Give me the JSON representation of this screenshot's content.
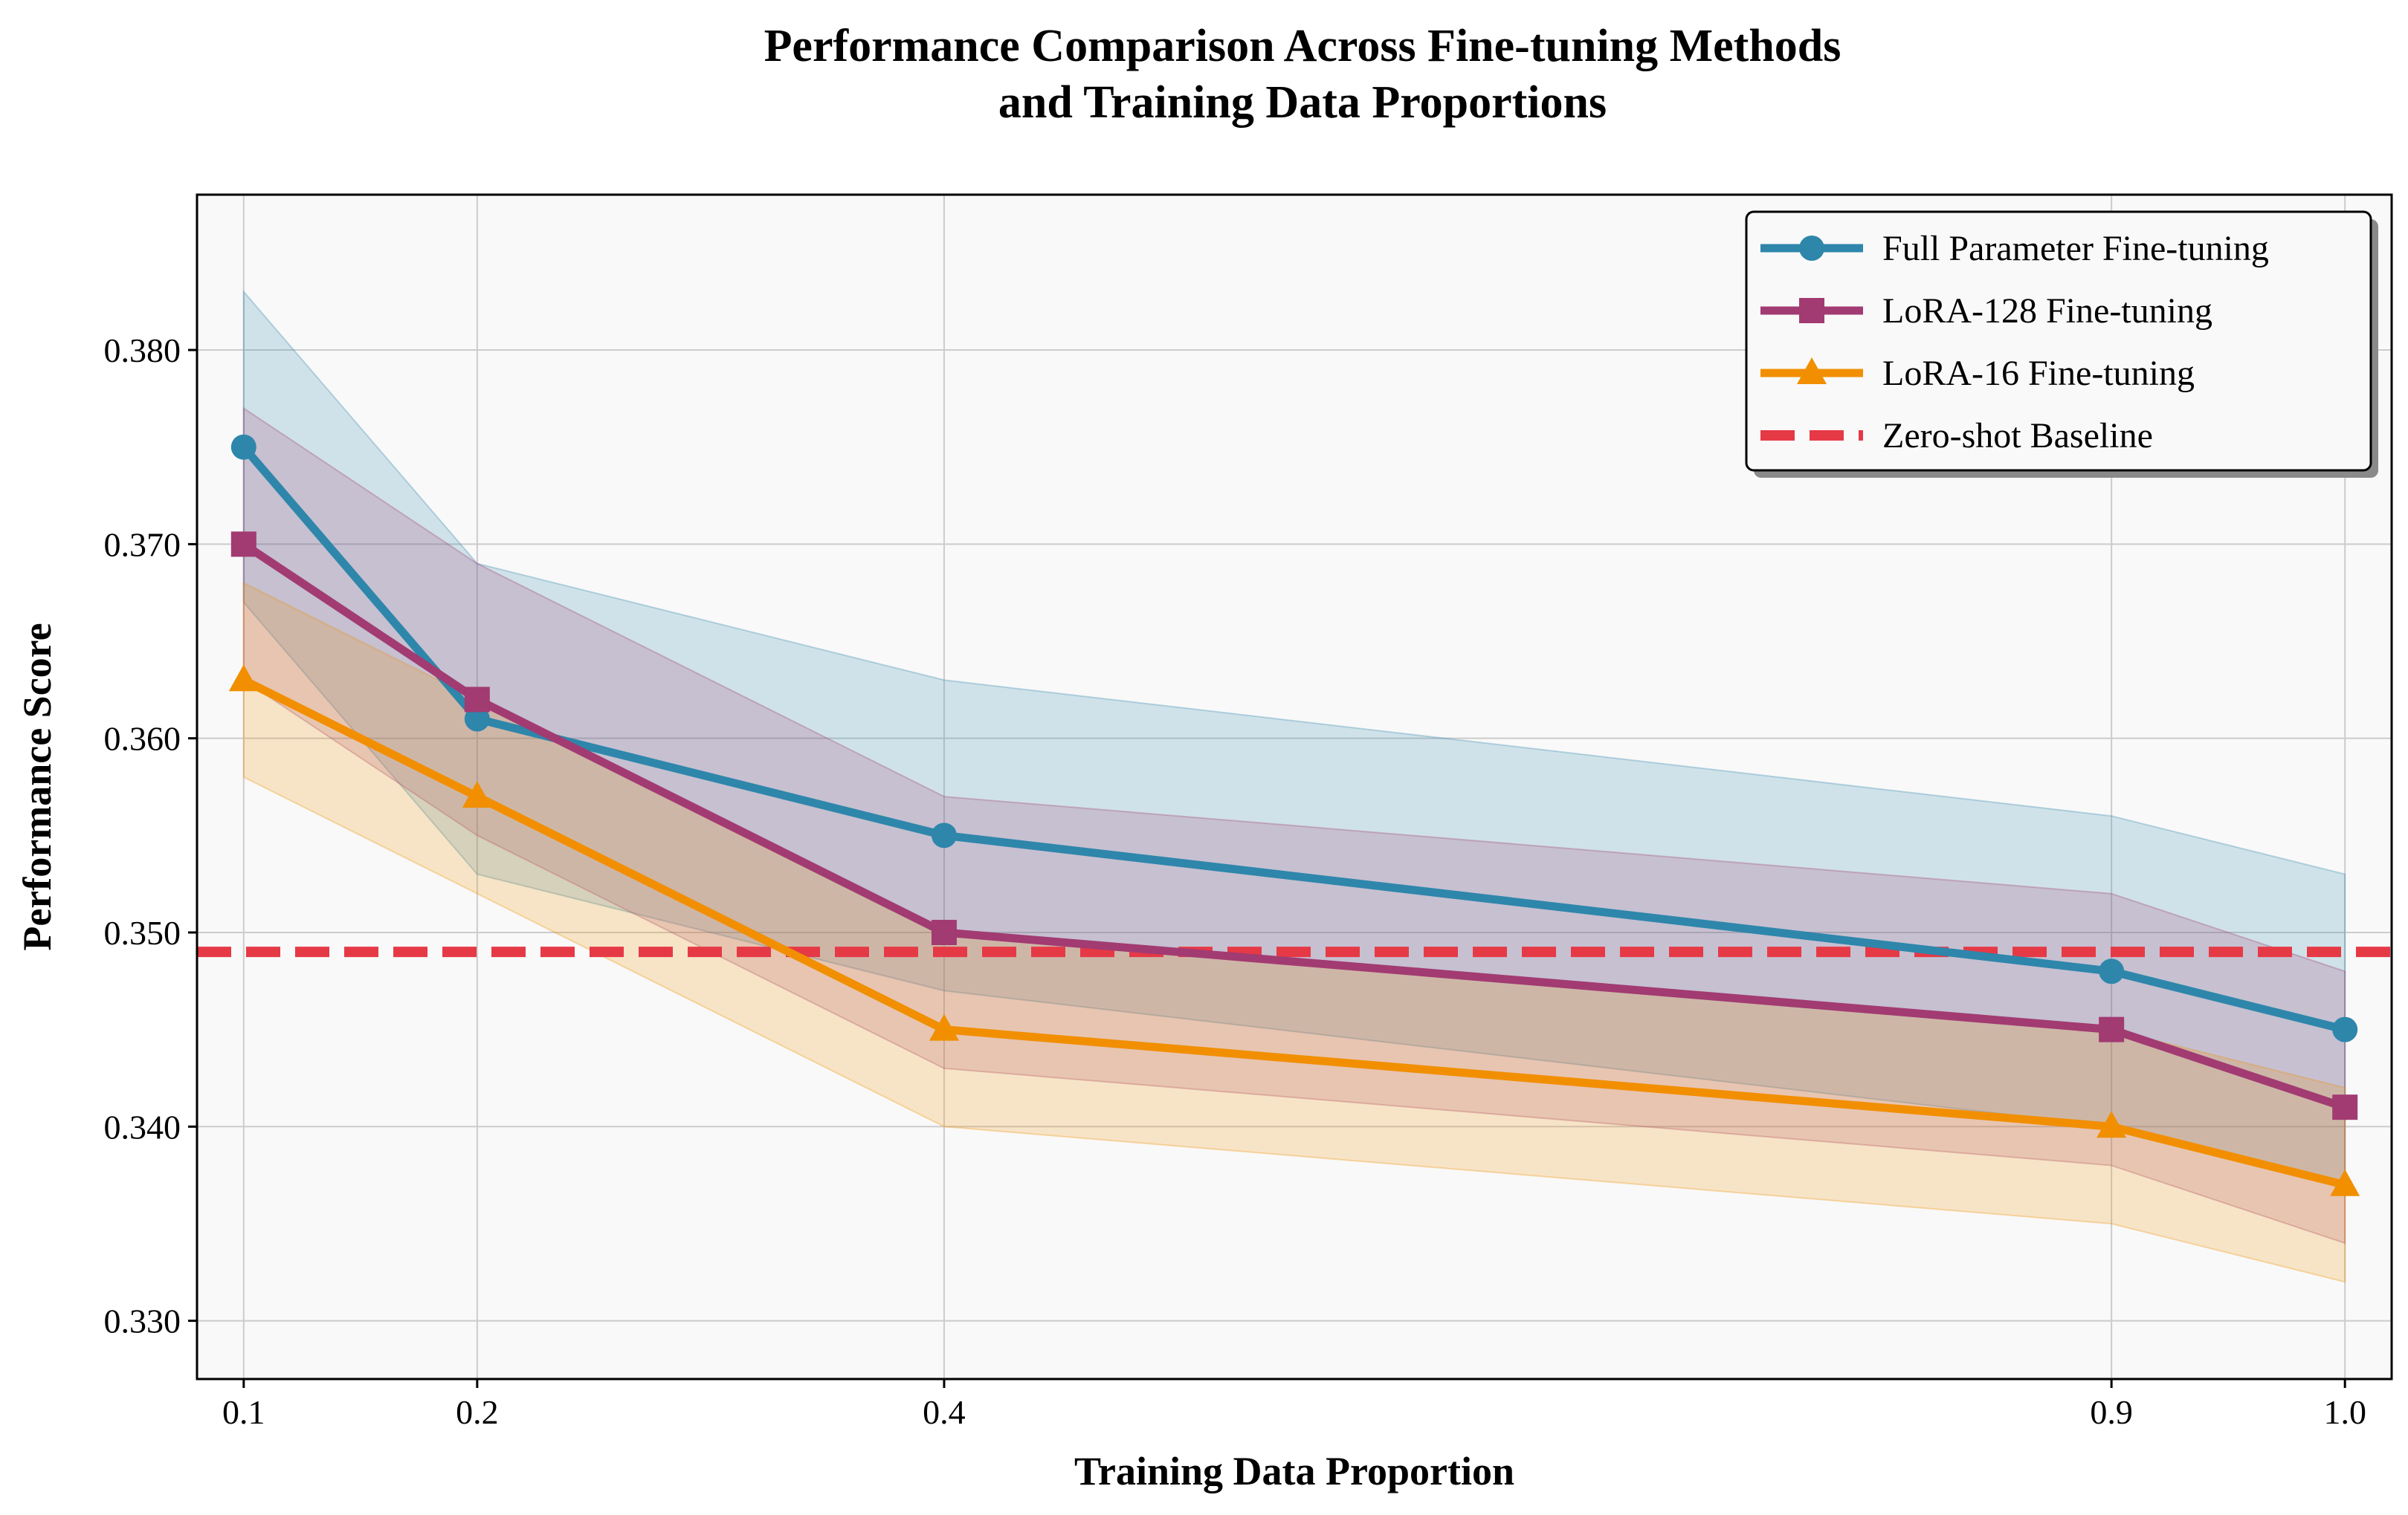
{
  "chart_data": {
    "type": "line",
    "title_line1": "Performance Comparison Across Fine-tuning Methods",
    "title_line2": "and Training Data Proportions",
    "xlabel": "Training Data Proportion",
    "ylabel": "Performance Score",
    "x": [
      0.1,
      0.2,
      0.4,
      0.9,
      1.0
    ],
    "x_tick_labels": [
      "0.1",
      "0.2",
      "0.4",
      "0.9",
      "1.0"
    ],
    "y_ticks": [
      0.33,
      0.34,
      0.35,
      0.36,
      0.37,
      0.38
    ],
    "y_tick_labels": [
      "0.330",
      "0.340",
      "0.350",
      "0.360",
      "0.370",
      "0.380"
    ],
    "xlim": [
      0.08,
      1.02
    ],
    "ylim": [
      0.327,
      0.388
    ],
    "grid": true,
    "legend_position": "top-right",
    "series": [
      {
        "name": "Full Parameter Fine-tuning",
        "color": "#2E86AB",
        "marker": "circle",
        "values": [
          0.375,
          0.361,
          0.355,
          0.348,
          0.345
        ],
        "upper": [
          0.383,
          0.369,
          0.363,
          0.356,
          0.353
        ],
        "lower": [
          0.367,
          0.353,
          0.347,
          0.34,
          0.337
        ]
      },
      {
        "name": "LoRA-128 Fine-tuning",
        "color": "#A23B72",
        "marker": "square",
        "values": [
          0.37,
          0.362,
          0.35,
          0.345,
          0.341
        ],
        "upper": [
          0.377,
          0.369,
          0.357,
          0.352,
          0.348
        ],
        "lower": [
          0.363,
          0.355,
          0.343,
          0.338,
          0.334
        ]
      },
      {
        "name": "LoRA-16 Fine-tuning",
        "color": "#F18F01",
        "marker": "triangle",
        "values": [
          0.363,
          0.357,
          0.345,
          0.34,
          0.337
        ],
        "upper": [
          0.368,
          0.362,
          0.35,
          0.345,
          0.342
        ],
        "lower": [
          0.358,
          0.352,
          0.34,
          0.335,
          0.332
        ]
      }
    ],
    "baseline": {
      "name": "Zero-shot Baseline",
      "value": 0.349,
      "color": "#E63946",
      "style": "dashed"
    },
    "plot_background": "#F9F9F9"
  }
}
